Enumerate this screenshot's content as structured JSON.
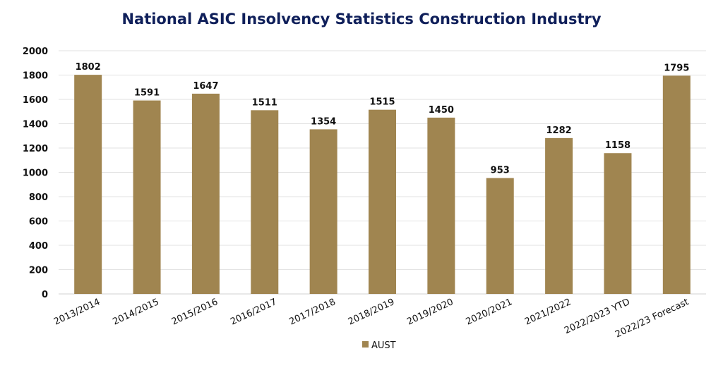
{
  "chart_data": {
    "type": "bar",
    "title": "National ASIC Insolvency Statistics Construction Industry",
    "categories": [
      "2013/2014",
      "2014/2015",
      "2015/2016",
      "2016/2017",
      "2017/2018",
      "2018/2019",
      "2019/2020",
      "2020/2021",
      "2021/2022",
      "2022/2023 YTD",
      "2022/23 Forecast"
    ],
    "series": [
      {
        "name": "AUST",
        "values": [
          1802,
          1591,
          1647,
          1511,
          1354,
          1515,
          1450,
          953,
          1282,
          1158,
          1795
        ]
      }
    ],
    "xlabel": "",
    "ylabel": "",
    "ylim": [
      0,
      2000
    ],
    "yticks": [
      0,
      200,
      400,
      600,
      800,
      1000,
      1200,
      1400,
      1600,
      1800,
      2000
    ],
    "grid": true,
    "legend": "bottom",
    "colors": {
      "bar": "#a08550",
      "highlight_label": "#e0202a",
      "title": "#0f1f5a",
      "grid": "#e2e2e2"
    },
    "highlighted_label_index": 10
  }
}
